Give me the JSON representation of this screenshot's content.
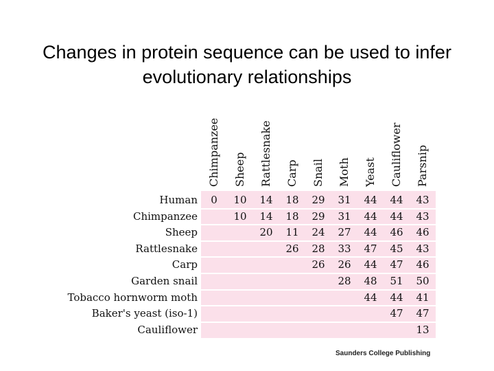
{
  "title": "Changes in protein sequence can be used to infer evolutionary relationships",
  "table": {
    "columns": [
      "Chimpanzee",
      "Sheep",
      "Rattlesnake",
      "Carp",
      "Snail",
      "Moth",
      "Yeast",
      "Cauliflower",
      "Parsnip"
    ],
    "rows": [
      {
        "label": "Human",
        "values": [
          "0",
          "10",
          "14",
          "18",
          "29",
          "31",
          "44",
          "44",
          "43"
        ]
      },
      {
        "label": "Chimpanzee",
        "values": [
          "",
          "10",
          "14",
          "18",
          "29",
          "31",
          "44",
          "44",
          "43"
        ]
      },
      {
        "label": "Sheep",
        "values": [
          "",
          "",
          "20",
          "11",
          "24",
          "27",
          "44",
          "46",
          "46"
        ]
      },
      {
        "label": "Rattlesnake",
        "values": [
          "",
          "",
          "",
          "26",
          "28",
          "33",
          "47",
          "45",
          "43"
        ]
      },
      {
        "label": "Carp",
        "values": [
          "",
          "",
          "",
          "",
          "26",
          "26",
          "44",
          "47",
          "46"
        ]
      },
      {
        "label": "Garden snail",
        "values": [
          "",
          "",
          "",
          "",
          "",
          "28",
          "48",
          "51",
          "50"
        ]
      },
      {
        "label": "Tobacco hornworm moth",
        "values": [
          "",
          "",
          "",
          "",
          "",
          "",
          "44",
          "44",
          "41"
        ]
      },
      {
        "label": "Baker's yeast (iso-1)",
        "values": [
          "",
          "",
          "",
          "",
          "",
          "",
          "",
          "47",
          "47"
        ]
      },
      {
        "label": "Cauliflower",
        "values": [
          "",
          "",
          "",
          "",
          "",
          "",
          "",
          "",
          "13"
        ]
      }
    ]
  },
  "credit": "Saunders College Publishing",
  "colors": {
    "matrix_background": "#fbe0ea",
    "grid_lines": "#ffffff"
  }
}
